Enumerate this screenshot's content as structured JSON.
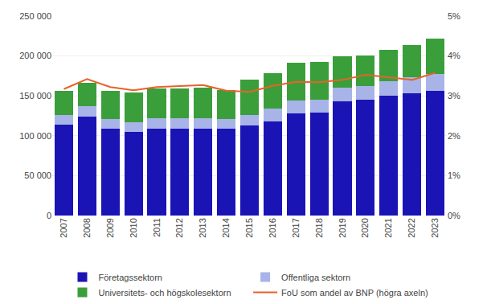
{
  "chart_data": {
    "type": "bar",
    "stacked": true,
    "grid": true,
    "legend": "bottom",
    "categories": [
      "2007",
      "2008",
      "2009",
      "2010",
      "2011",
      "2012",
      "2013",
      "2014",
      "2015",
      "2016",
      "2017",
      "2018",
      "2019",
      "2020",
      "2021",
      "2022",
      "2023"
    ],
    "series": [
      {
        "name": "Företagssektorn",
        "color": "#1a14b5",
        "type": "bar",
        "values": [
          114000,
          124000,
          109000,
          105000,
          109000,
          109000,
          109000,
          109000,
          113000,
          118000,
          128000,
          129000,
          143000,
          145000,
          150000,
          153000,
          156000
        ]
      },
      {
        "name": "Offentliga sektorn",
        "color": "#a8b4e8",
        "type": "bar",
        "values": [
          12000,
          13000,
          12000,
          11500,
          12500,
          12500,
          12500,
          11500,
          13000,
          16000,
          16000,
          16000,
          17000,
          17000,
          18000,
          20000,
          21000
        ]
      },
      {
        "name": "Universitets- och högskolesektorn",
        "color": "#3a9f3a",
        "type": "bar",
        "values": [
          30000,
          29000,
          35000,
          38000,
          38000,
          38000,
          39000,
          37000,
          44000,
          44000,
          48000,
          48000,
          40000,
          39000,
          40000,
          41000,
          45000
        ]
      },
      {
        "name": "FoU som andel av BNP (högra axeln)",
        "color": "#e8622a",
        "type": "line",
        "axis": "y2",
        "values": [
          3.17,
          3.42,
          3.22,
          3.14,
          3.22,
          3.24,
          3.27,
          3.13,
          3.1,
          3.25,
          3.35,
          3.34,
          3.4,
          3.53,
          3.47,
          3.4,
          3.58
        ]
      }
    ],
    "ylim": [
      0,
      250000
    ],
    "yticks": [
      0,
      {
        "value": 50000,
        "label": "50 000"
      },
      {
        "value": 100000,
        "label": "100 000"
      },
      {
        "value": 150000,
        "label": "150 000"
      },
      {
        "value": 200000,
        "label": "200 000"
      },
      {
        "value": 250000,
        "label": "250 000"
      }
    ],
    "y2lim": [
      0,
      5
    ],
    "y2ticks": [
      {
        "value": 0,
        "label": "0%"
      },
      {
        "value": 1,
        "label": "1%"
      },
      {
        "value": 2,
        "label": "2%"
      },
      {
        "value": 3,
        "label": "3%"
      },
      {
        "value": 4,
        "label": "4%"
      },
      {
        "value": 5,
        "label": "5%"
      }
    ]
  }
}
